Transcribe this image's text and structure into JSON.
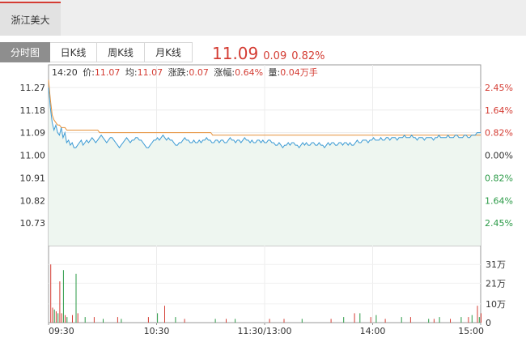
{
  "stock_tab": {
    "name": "浙江美大"
  },
  "tabs": [
    {
      "label": "分时图",
      "active": true
    },
    {
      "label": "日K线",
      "active": false
    },
    {
      "label": "周K线",
      "active": false
    },
    {
      "label": "月K线",
      "active": false
    }
  ],
  "quote": {
    "price": "11.09",
    "change": "0.09",
    "change_pct": "0.82%"
  },
  "info": {
    "time": "14:20",
    "price_label": "价:",
    "price": "11.07",
    "avg_label": "均:",
    "avg": "11.07",
    "change_label": "涨跌:",
    "change": "0.07",
    "pct_label": "涨幅:",
    "pct": "0.64%",
    "vol_label": "量:",
    "vol": "0.04万手"
  },
  "colors": {
    "up": "#d43c33",
    "down": "#2a9a46",
    "price_line": "#3c9bd4",
    "avg_line": "#e6913a",
    "fill": "#eef6f0"
  },
  "chart_data": [
    {
      "type": "line",
      "ylim": [
        10.64,
        11.36
      ],
      "prev_close": 11.0,
      "y_ticks": [
        "11.27",
        "11.18",
        "11.09",
        "11.00",
        "10.91",
        "10.82",
        "10.73"
      ],
      "y_tick_values": [
        11.27,
        11.18,
        11.09,
        11.0,
        10.91,
        10.82,
        10.73
      ],
      "pct_ticks": [
        "2.45%",
        "1.64%",
        "0.82%",
        "0.00%",
        "0.82%",
        "1.64%",
        "2.45%"
      ],
      "x_ticks": [
        "09:30",
        "10:30",
        "11:30/13:00",
        "14:00",
        "15:00"
      ],
      "minutes": 240,
      "series": [
        {
          "key": "price",
          "values": [
            11.27,
            11.19,
            11.13,
            11.1,
            11.12,
            11.09,
            11.08,
            11.11,
            11.07,
            11.09,
            11.05,
            11.06,
            11.04,
            11.05,
            11.03,
            11.03,
            11.04,
            11.05,
            11.06,
            11.04,
            11.05,
            11.06,
            11.05,
            11.06,
            11.07,
            11.06,
            11.05,
            11.06,
            11.07,
            11.08,
            11.07,
            11.06,
            11.05,
            11.06,
            11.07,
            11.07,
            11.06,
            11.05,
            11.04,
            11.03,
            11.04,
            11.05,
            11.06,
            11.07,
            11.06,
            11.05,
            11.06,
            11.06,
            11.07,
            11.07,
            11.06,
            11.06,
            11.05,
            11.04,
            11.03,
            11.03,
            11.04,
            11.05,
            11.06,
            11.06,
            11.07,
            11.06,
            11.07,
            11.08,
            11.07,
            11.06,
            11.07,
            11.06,
            11.06,
            11.05,
            11.04,
            11.04,
            11.05,
            11.05,
            11.06,
            11.07,
            11.06,
            11.06,
            11.05,
            11.05,
            11.06,
            11.05,
            11.05,
            11.06,
            11.05,
            11.06,
            11.06,
            11.07,
            11.06,
            11.06,
            11.05,
            11.05,
            11.06,
            11.06,
            11.05,
            11.06,
            11.06,
            11.05,
            11.05,
            11.06,
            11.07,
            11.06,
            11.06,
            11.05,
            11.06,
            11.06,
            11.05,
            11.06,
            11.07,
            11.06,
            11.06,
            11.05,
            11.06,
            11.05,
            11.05,
            11.06,
            11.06,
            11.05,
            11.06,
            11.05,
            11.05,
            11.06,
            11.06,
            11.05,
            11.05,
            11.04,
            11.04,
            11.05,
            11.04,
            11.03,
            11.04,
            11.04,
            11.05,
            11.04,
            11.05,
            11.05,
            11.04,
            11.04,
            11.03,
            11.04,
            11.05,
            11.04,
            11.05,
            11.04,
            11.04,
            11.05,
            11.05,
            11.04,
            11.04,
            11.05,
            11.04,
            11.04,
            11.03,
            11.04,
            11.05,
            11.04,
            11.05,
            11.05,
            11.04,
            11.04,
            11.05,
            11.05,
            11.04,
            11.05,
            11.05,
            11.04,
            11.05,
            11.04,
            11.04,
            11.05,
            11.06,
            11.05,
            11.05,
            11.06,
            11.06,
            11.06,
            11.05,
            11.06,
            11.06,
            11.07,
            11.06,
            11.06,
            11.06,
            11.07,
            11.06,
            11.06,
            11.07,
            11.07,
            11.06,
            11.07,
            11.07,
            11.07,
            11.06,
            11.07,
            11.07,
            11.07,
            11.08,
            11.07,
            11.07,
            11.07,
            11.08,
            11.07,
            11.07,
            11.06,
            11.07,
            11.07,
            11.07,
            11.06,
            11.07,
            11.07,
            11.07,
            11.07,
            11.06,
            11.07,
            11.07,
            11.08,
            11.07,
            11.07,
            11.07,
            11.07,
            11.08,
            11.07,
            11.07,
            11.07,
            11.08,
            11.08,
            11.07,
            11.07,
            11.07,
            11.08,
            11.08,
            11.07,
            11.07,
            11.08,
            11.08,
            11.08,
            11.09,
            11.09,
            11.09
          ]
        },
        {
          "key": "avg",
          "values": [
            11.3,
            11.22,
            11.16,
            11.14,
            11.13,
            11.12,
            11.12,
            11.11,
            11.11,
            11.11,
            11.1,
            11.1,
            11.1,
            11.1,
            11.1,
            11.1,
            11.1,
            11.1,
            11.1,
            11.1,
            11.1,
            11.1,
            11.1,
            11.1,
            11.1,
            11.1,
            11.1,
            11.1,
            11.09,
            11.09,
            11.09,
            11.09,
            11.09,
            11.09,
            11.09,
            11.09,
            11.09,
            11.09,
            11.09,
            11.09,
            11.09,
            11.09,
            11.09,
            11.09,
            11.09,
            11.09,
            11.09,
            11.09,
            11.09,
            11.09,
            11.09,
            11.09,
            11.09,
            11.09,
            11.09,
            11.09,
            11.09,
            11.09,
            11.09,
            11.09,
            11.09,
            11.09,
            11.09,
            11.09,
            11.09,
            11.09,
            11.09,
            11.09,
            11.09,
            11.09,
            11.09,
            11.09,
            11.09,
            11.09,
            11.09,
            11.09,
            11.09,
            11.09,
            11.09,
            11.09,
            11.09,
            11.09,
            11.09,
            11.09,
            11.09,
            11.09,
            11.09,
            11.09,
            11.09,
            11.09,
            11.08,
            11.08,
            11.08,
            11.08,
            11.08,
            11.08,
            11.08,
            11.08,
            11.08,
            11.08,
            11.08,
            11.08,
            11.08,
            11.08,
            11.08,
            11.08,
            11.08,
            11.08,
            11.08,
            11.08,
            11.08,
            11.08,
            11.08,
            11.08,
            11.08,
            11.08,
            11.08,
            11.08,
            11.08,
            11.08,
            11.08,
            11.08,
            11.08,
            11.08,
            11.08,
            11.08,
            11.08,
            11.08,
            11.08,
            11.08,
            11.08,
            11.08,
            11.08,
            11.08,
            11.08,
            11.08,
            11.08,
            11.08,
            11.08,
            11.08,
            11.08,
            11.08,
            11.08,
            11.08,
            11.08,
            11.08,
            11.08,
            11.08,
            11.08,
            11.08,
            11.08,
            11.08,
            11.08,
            11.08,
            11.08,
            11.08,
            11.08,
            11.08,
            11.08,
            11.08,
            11.08,
            11.08,
            11.08,
            11.08,
            11.08,
            11.08,
            11.08,
            11.08,
            11.08,
            11.08,
            11.08,
            11.08,
            11.08,
            11.08,
            11.08,
            11.08,
            11.08,
            11.08,
            11.08,
            11.08,
            11.08,
            11.08,
            11.08,
            11.08,
            11.08,
            11.08,
            11.08,
            11.08,
            11.08,
            11.08,
            11.08,
            11.08,
            11.08,
            11.08,
            11.08,
            11.08,
            11.08,
            11.08,
            11.08,
            11.08,
            11.08,
            11.08,
            11.08,
            11.08,
            11.08,
            11.08,
            11.08,
            11.08,
            11.08,
            11.08,
            11.08,
            11.08,
            11.08,
            11.08,
            11.08,
            11.08,
            11.08,
            11.08,
            11.08,
            11.08,
            11.08,
            11.08,
            11.08,
            11.08,
            11.08,
            11.08,
            11.08,
            11.08,
            11.08,
            11.08,
            11.08,
            11.08,
            11.08,
            11.08,
            11.08,
            11.08,
            11.08,
            11.08
          ]
        }
      ]
    },
    {
      "type": "bar",
      "ylim": [
        0,
        38
      ],
      "y_ticks": [
        "31万",
        "21万",
        "10万",
        "0"
      ],
      "y_tick_values": [
        31,
        21,
        10,
        0
      ],
      "volume_unit": "万",
      "spikes": [
        [
          1,
          31,
          "up"
        ],
        [
          2,
          8,
          "up"
        ],
        [
          3,
          7,
          "down"
        ],
        [
          4,
          6,
          "up"
        ],
        [
          5,
          5,
          "down"
        ],
        [
          6,
          22,
          "up"
        ],
        [
          7,
          5,
          "up"
        ],
        [
          8,
          28,
          "down"
        ],
        [
          9,
          4,
          "up"
        ],
        [
          10,
          3,
          "down"
        ],
        [
          13,
          4,
          "up"
        ],
        [
          15,
          26,
          "down"
        ],
        [
          16,
          5,
          "up"
        ],
        [
          20,
          3,
          "down"
        ],
        [
          25,
          3,
          "up"
        ],
        [
          30,
          2,
          "down"
        ],
        [
          38,
          3,
          "up"
        ],
        [
          40,
          2,
          "down"
        ],
        [
          55,
          3,
          "up"
        ],
        [
          60,
          5,
          "down"
        ],
        [
          64,
          9,
          "up"
        ],
        [
          70,
          3,
          "down"
        ],
        [
          75,
          2,
          "up"
        ],
        [
          92,
          2,
          "down"
        ],
        [
          98,
          2,
          "up"
        ],
        [
          103,
          2,
          "down"
        ],
        [
          122,
          2,
          "up"
        ],
        [
          130,
          2,
          "up"
        ],
        [
          140,
          2,
          "down"
        ],
        [
          156,
          2,
          "up"
        ],
        [
          163,
          3,
          "down"
        ],
        [
          169,
          5,
          "up"
        ],
        [
          172,
          5,
          "down"
        ],
        [
          178,
          3,
          "up"
        ],
        [
          181,
          4,
          "down"
        ],
        [
          186,
          2,
          "up"
        ],
        [
          195,
          3,
          "down"
        ],
        [
          200,
          3,
          "up"
        ],
        [
          210,
          2,
          "down"
        ],
        [
          213,
          2,
          "up"
        ],
        [
          216,
          3,
          "down"
        ],
        [
          222,
          2,
          "up"
        ],
        [
          228,
          3,
          "down"
        ],
        [
          232,
          3,
          "up"
        ],
        [
          234,
          4,
          "down"
        ],
        [
          237,
          9,
          "up"
        ],
        [
          238,
          3,
          "down"
        ],
        [
          239,
          5,
          "up"
        ]
      ]
    }
  ]
}
